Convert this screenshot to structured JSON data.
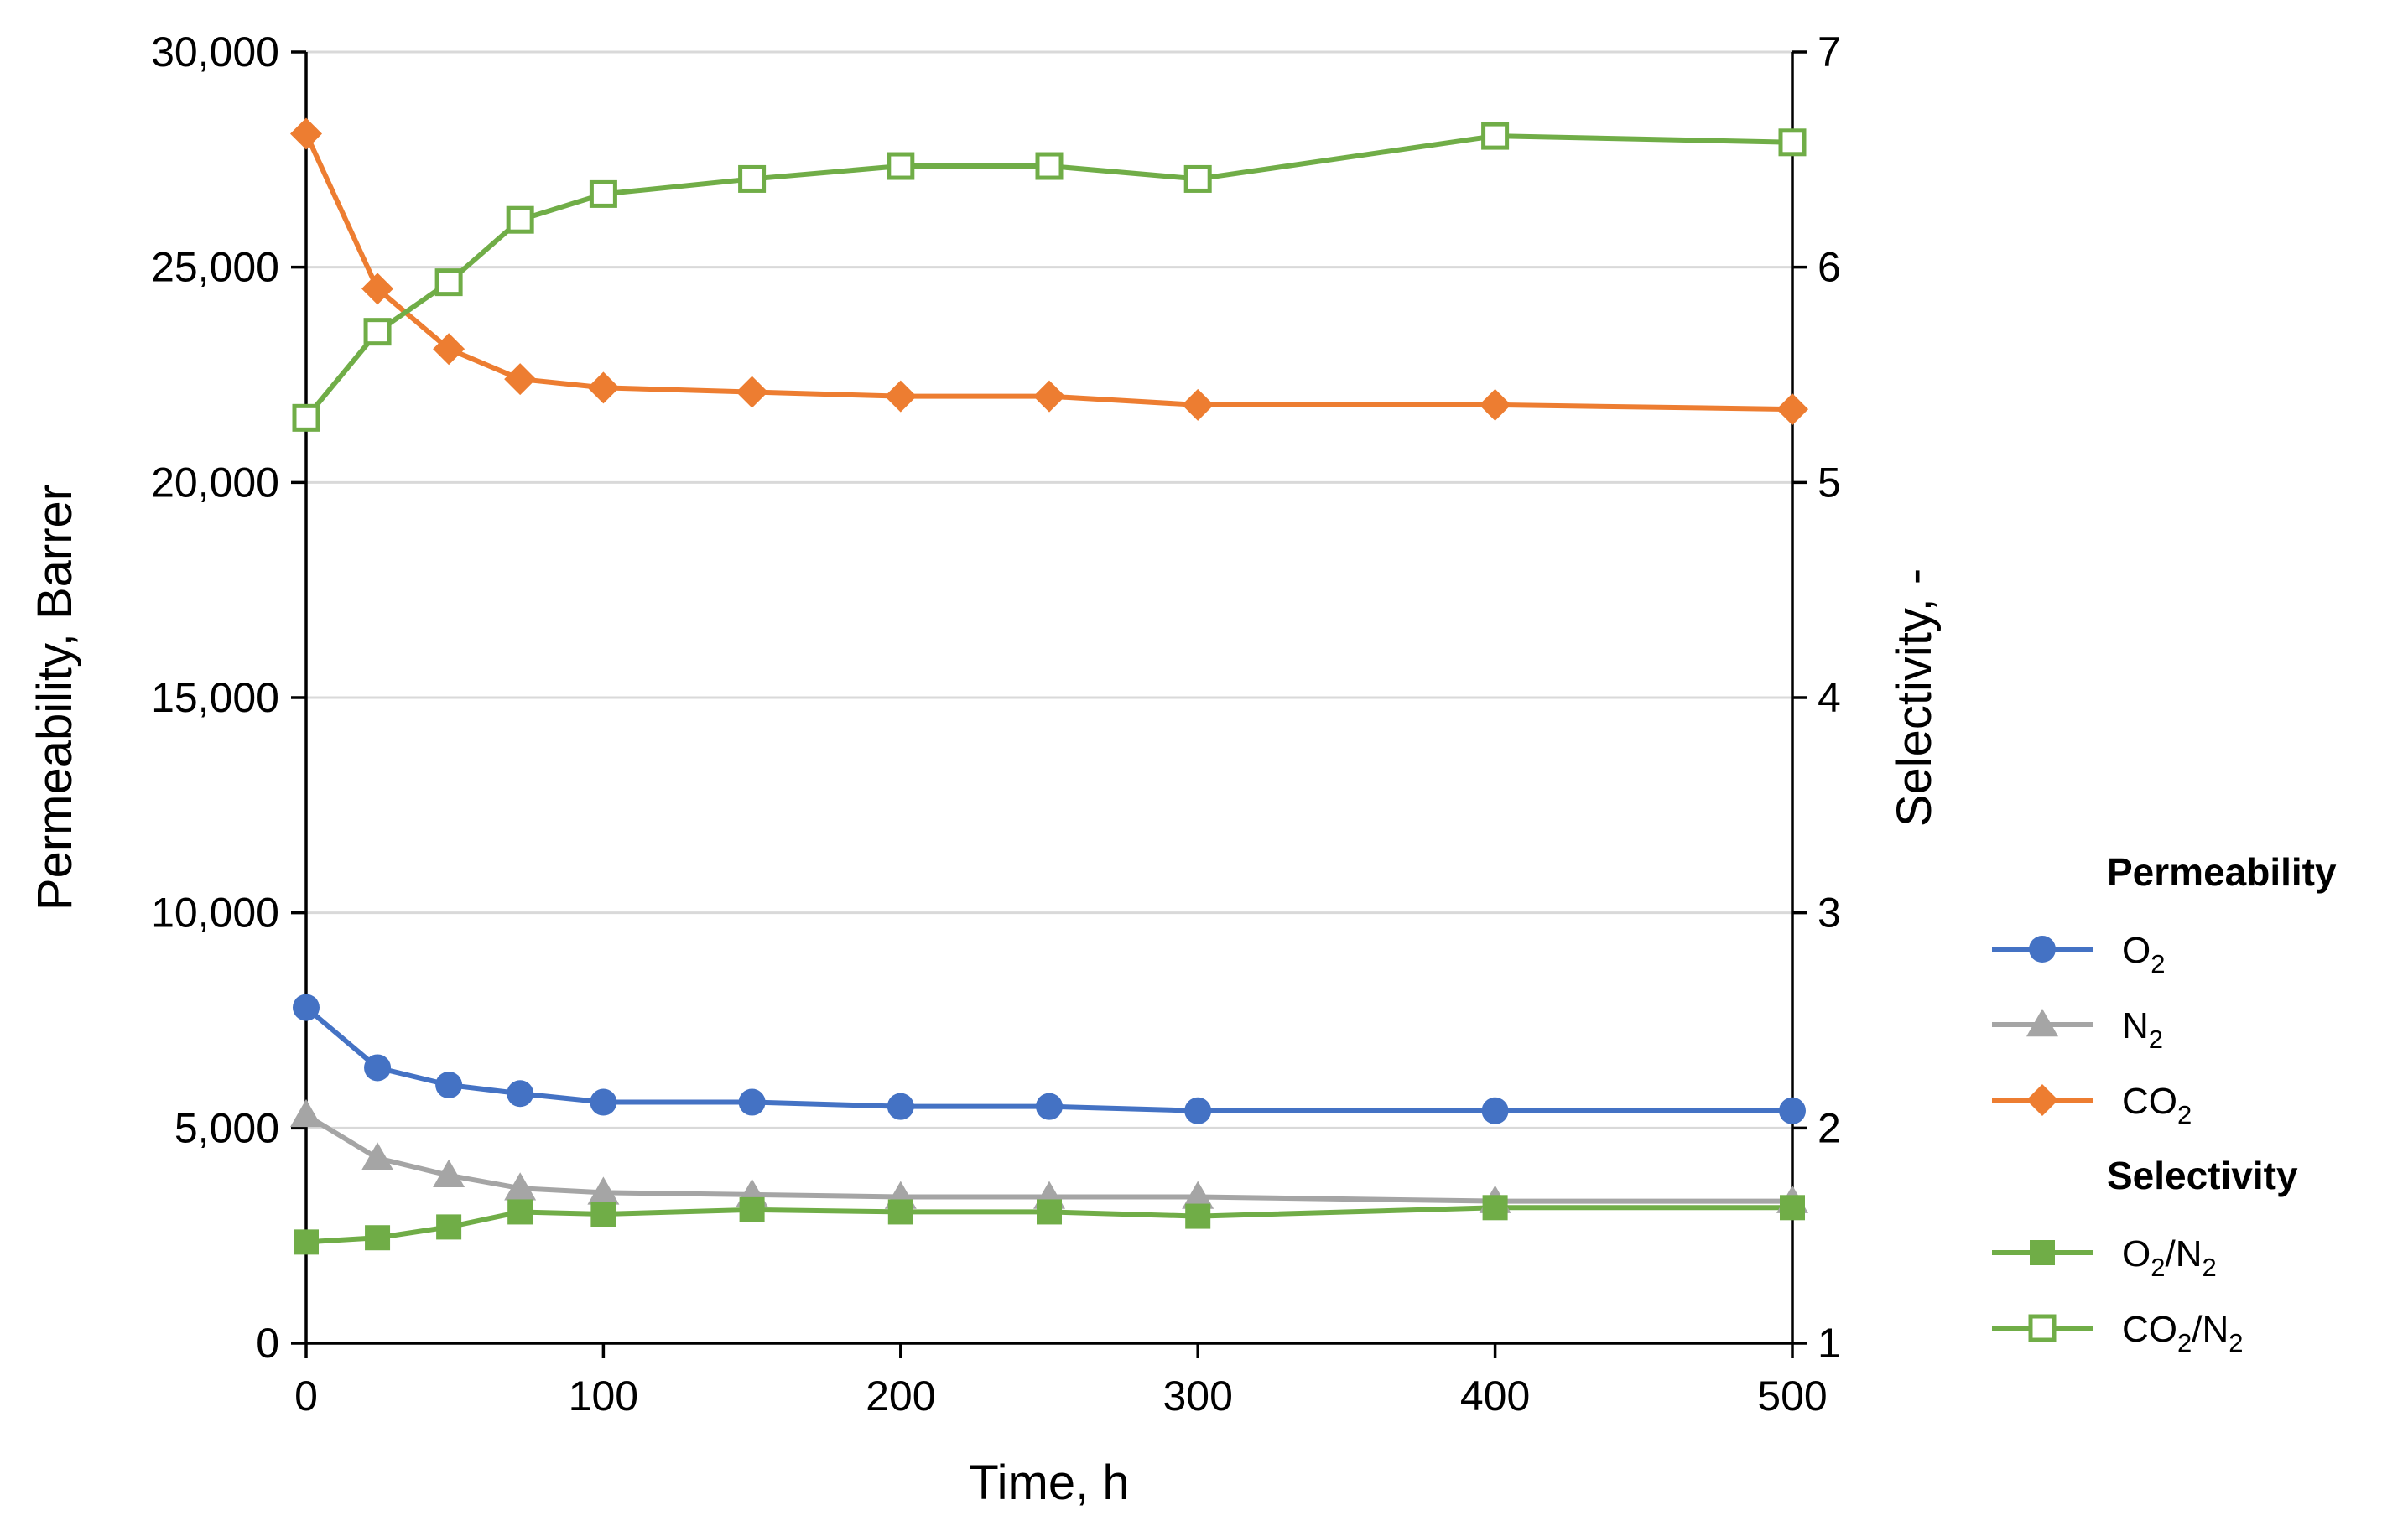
{
  "chart_data": {
    "type": "line",
    "x_axis": {
      "label": "Time, h",
      "range": [
        0,
        500
      ],
      "ticks": [
        0,
        100,
        200,
        300,
        400,
        500
      ],
      "tick_labels": [
        "0",
        "100",
        "200",
        "300",
        "400",
        "500"
      ]
    },
    "y_axis_left": {
      "label": "Permeability, Barrer",
      "range": [
        0,
        30000
      ],
      "ticks": [
        0,
        5000,
        10000,
        15000,
        20000,
        25000,
        30000
      ],
      "tick_labels": [
        "0",
        "5,000",
        "10,000",
        "15,000",
        "20,000",
        "25,000",
        "30,000"
      ],
      "gridlines": true
    },
    "y_axis_right": {
      "label": "Selectivity, -",
      "range": [
        1,
        7
      ],
      "ticks": [
        1,
        2,
        3,
        4,
        5,
        6,
        7
      ],
      "tick_labels": [
        "1",
        "2",
        "3",
        "4",
        "5",
        "6",
        "7"
      ]
    },
    "x": [
      0,
      24,
      48,
      72,
      100,
      150,
      200,
      250,
      300,
      400,
      500
    ],
    "series": [
      {
        "key": "o2",
        "group": "Permeability",
        "axis": "left",
        "name_parts": [
          "O",
          "2",
          ""
        ],
        "color": "#4472C4",
        "marker": "circle",
        "values": [
          7800,
          6400,
          6000,
          5800,
          5600,
          5600,
          5500,
          5500,
          5400,
          5400,
          5400
        ]
      },
      {
        "key": "n2",
        "group": "Permeability",
        "axis": "left",
        "name_parts": [
          "N",
          "2",
          ""
        ],
        "color": "#A5A5A5",
        "marker": "triangle",
        "values": [
          5300,
          4300,
          3900,
          3600,
          3500,
          3450,
          3400,
          3400,
          3400,
          3300,
          3300
        ]
      },
      {
        "key": "co2",
        "group": "Permeability",
        "axis": "left",
        "name_parts": [
          "CO",
          "2",
          ""
        ],
        "color": "#ED7D31",
        "marker": "diamond",
        "values": [
          28100,
          24500,
          23100,
          22400,
          22200,
          22100,
          22000,
          22000,
          21800,
          21800,
          21700
        ]
      },
      {
        "key": "o2n2",
        "group": "Selectivity",
        "axis": "right",
        "name_parts": [
          "O",
          "2",
          "/N",
          "2",
          ""
        ],
        "color": "#70AD47",
        "marker": "square-filled",
        "values": [
          1.47,
          1.49,
          1.54,
          1.61,
          1.6,
          1.62,
          1.61,
          1.61,
          1.59,
          1.63,
          1.63
        ]
      },
      {
        "key": "co2n2",
        "group": "Selectivity",
        "axis": "right",
        "name_parts": [
          "CO",
          "2",
          "/N",
          "2",
          ""
        ],
        "color": "#70AD47",
        "marker": "square-open",
        "values": [
          5.3,
          5.7,
          5.93,
          6.22,
          6.34,
          6.41,
          6.47,
          6.47,
          6.41,
          6.61,
          6.58
        ]
      }
    ],
    "legend": {
      "placement": "right",
      "groups": [
        {
          "title": "Permeability",
          "series": [
            "o2",
            "n2",
            "co2"
          ]
        },
        {
          "title": "Selectivity",
          "series": [
            "o2n2",
            "co2n2"
          ]
        }
      ]
    }
  }
}
